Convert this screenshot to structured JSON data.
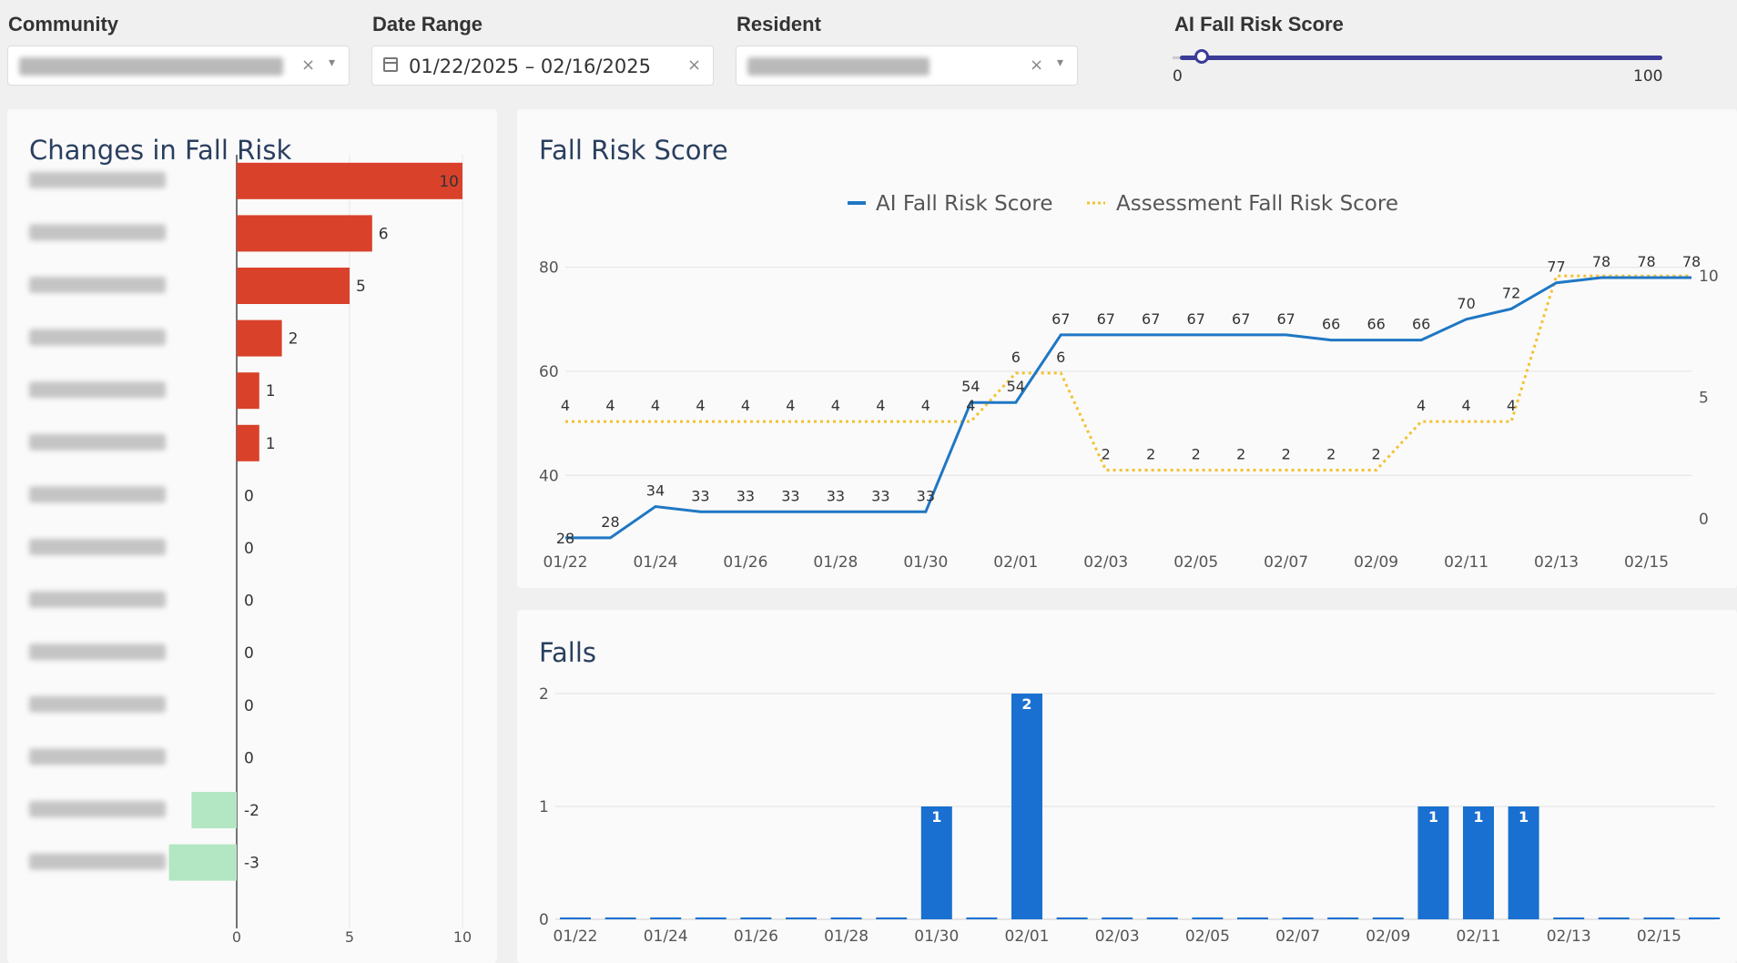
{
  "filters": {
    "community_label": "Community",
    "community_clear": "×",
    "date_label": "Date Range",
    "date_value": "01/22/2025 – 02/16/2025",
    "date_clear": "×",
    "resident_label": "Resident",
    "resident_clear": "×",
    "caret": "▾",
    "score_label": "AI Fall Risk Score",
    "score_min": "0",
    "score_max": "100",
    "score_range": [
      0,
      100
    ]
  },
  "panels": {
    "changes_title": "Changes in Fall Risk",
    "risk_title": "Fall Risk Score",
    "falls_title": "Falls"
  },
  "colors": {
    "ai": "#1f77c4",
    "assessment": "#f2c232",
    "increase": "#d9412a",
    "decrease": "#b3e6c3",
    "falls": "#1a70d0"
  },
  "chart_data": [
    {
      "type": "bar",
      "orientation": "horizontal",
      "title": "Changes in Fall Risk",
      "categories": [
        "",
        "",
        "",
        "",
        "",
        "",
        "",
        "",
        "",
        "",
        "",
        "",
        "",
        ""
      ],
      "values": [
        10,
        6,
        5,
        2,
        1,
        1,
        0,
        0,
        0,
        0,
        0,
        0,
        -2,
        -3
      ],
      "value_labels": [
        "10",
        "6",
        "5",
        "2",
        "1",
        "1",
        "0",
        "0",
        "0",
        "0",
        "0",
        "0",
        "-2",
        "-3"
      ],
      "xlim": [
        -3,
        10
      ],
      "xticks": [
        "0",
        "5",
        "10"
      ]
    },
    {
      "type": "line",
      "title": "Fall Risk Score",
      "x": [
        "01/22",
        "01/23",
        "01/24",
        "01/25",
        "01/26",
        "01/27",
        "01/28",
        "01/29",
        "01/30",
        "01/31",
        "02/01",
        "02/02",
        "02/03",
        "02/04",
        "02/05",
        "02/06",
        "02/07",
        "02/08",
        "02/09",
        "02/10",
        "02/11",
        "02/12",
        "02/13",
        "02/14",
        "02/15",
        "02/16"
      ],
      "xticks": [
        "01/22",
        "01/24",
        "01/26",
        "01/28",
        "01/30",
        "02/01",
        "02/03",
        "02/05",
        "02/07",
        "02/09",
        "02/11",
        "02/13",
        "02/15"
      ],
      "series": [
        {
          "name": "AI Fall Risk Score",
          "axis": "left",
          "values": [
            28,
            28,
            34,
            33,
            33,
            33,
            33,
            33,
            33,
            54,
            54,
            67,
            67,
            67,
            67,
            67,
            67,
            66,
            66,
            66,
            70,
            72,
            77,
            78,
            78,
            78
          ],
          "labels": [
            "28",
            "28",
            "34",
            "33",
            "33",
            "33",
            "33",
            "33",
            "33",
            "54",
            "54",
            "67",
            "67",
            "67",
            "67",
            "67",
            "67",
            "66",
            "66",
            "66",
            "70",
            "72",
            "77",
            "78",
            "78",
            "78"
          ]
        },
        {
          "name": "Assessment Fall Risk Score",
          "axis": "right",
          "values": [
            4,
            4,
            4,
            4,
            4,
            4,
            4,
            4,
            4,
            4,
            6,
            6,
            2,
            2,
            2,
            2,
            2,
            2,
            2,
            4,
            4,
            4,
            10,
            10,
            10,
            10
          ],
          "labels": [
            "4",
            "4",
            "4",
            "4",
            "4",
            "4",
            "4",
            "4",
            "4",
            "4",
            "6",
            "6",
            "2",
            "2",
            "2",
            "2",
            "2",
            "2",
            "2",
            "4",
            "4",
            "4",
            "",
            "",
            "",
            ""
          ]
        }
      ],
      "y_left_ticks": [
        40,
        60,
        80
      ],
      "y_left_range": [
        25,
        85
      ],
      "y_right_ticks": [
        0,
        5,
        10
      ],
      "y_right_range": [
        -1.43,
        11.43
      ],
      "legend": "top-center",
      "grid": true
    },
    {
      "type": "bar",
      "title": "Falls",
      "x": [
        "01/22",
        "01/23",
        "01/24",
        "01/25",
        "01/26",
        "01/27",
        "01/28",
        "01/29",
        "01/30",
        "01/31",
        "02/01",
        "02/02",
        "02/03",
        "02/04",
        "02/05",
        "02/06",
        "02/07",
        "02/08",
        "02/09",
        "02/10",
        "02/11",
        "02/12",
        "02/13",
        "02/14",
        "02/15",
        "02/16"
      ],
      "xticks": [
        "01/22",
        "01/24",
        "01/26",
        "01/28",
        "01/30",
        "02/01",
        "02/03",
        "02/05",
        "02/07",
        "02/09",
        "02/11",
        "02/13",
        "02/15"
      ],
      "values": [
        0,
        0,
        0,
        0,
        0,
        0,
        0,
        0,
        1,
        0,
        2,
        0,
        0,
        0,
        0,
        0,
        0,
        0,
        0,
        1,
        1,
        1,
        0,
        0,
        0,
        0
      ],
      "yticks": [
        0,
        1,
        2
      ],
      "ylim": [
        0,
        2
      ],
      "grid": true
    }
  ]
}
